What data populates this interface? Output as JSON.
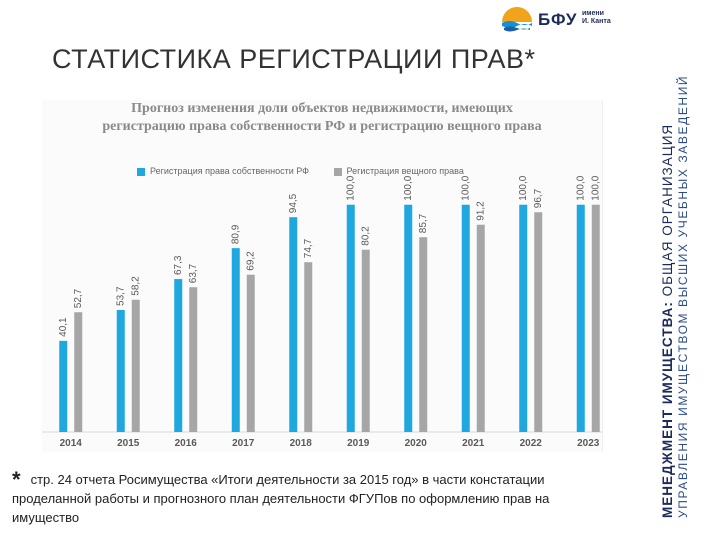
{
  "logo": {
    "abbr": "БФУ",
    "name_line1": "имени",
    "name_line2": "И. Канта"
  },
  "page_title": "СТАТИСТИКА РЕГИСТРАЦИИ ПРАВ*",
  "side": {
    "line1_bold": "МЕНЕДЖМЕНТ ИМУЩЕСТВА:",
    "line1_rest": " ОБЩАЯ ОРГАНИЗАЦИЯ",
    "line2": "УПРАВЛЕНИЯ ИМУЩЕСТВОМ ВЫСШИХ УЧЕБНЫХ ЗАВЕДЕНИЙ"
  },
  "footnote": {
    "star": "*",
    "text": "стр. 24 отчета Росимущества «Итоги деятельности за 2015 год» в части констатации проделанной работы и прогнозного план деятельности ФГУПов по оформлению прав на имущество"
  },
  "chart_data": {
    "type": "bar",
    "title": "Прогноз изменения доли объектов недвижимости, имеющих регистрацию права собственности РФ и регистрацию вещного права",
    "categories": [
      "2014",
      "2015",
      "2016",
      "2017",
      "2018",
      "2019",
      "2020",
      "2021",
      "2022",
      "2023"
    ],
    "series": [
      {
        "name": "Регистрация права собственности РФ",
        "color": "#1fa8e0",
        "values": [
          40.1,
          53.7,
          67.3,
          80.9,
          94.5,
          100.0,
          100.0,
          100.0,
          100.0,
          100.0
        ],
        "labels": [
          "40,1",
          "53,7",
          "67,3",
          "80,9",
          "94,5",
          "100,0",
          "100,0",
          "100,0",
          "100,0",
          "100,0"
        ]
      },
      {
        "name": "Регистрация вещного права",
        "color": "#a6a6a6",
        "values": [
          52.7,
          58.2,
          63.7,
          69.2,
          74.7,
          80.2,
          85.7,
          91.2,
          96.7,
          100.0
        ],
        "labels": [
          "52,7",
          "58,2",
          "63,7",
          "69,2",
          "74,7",
          "80,2",
          "85,7",
          "91,2",
          "96,7",
          "100,0"
        ]
      }
    ],
    "ylim": [
      0,
      110
    ],
    "grid": false,
    "legend": "top"
  }
}
